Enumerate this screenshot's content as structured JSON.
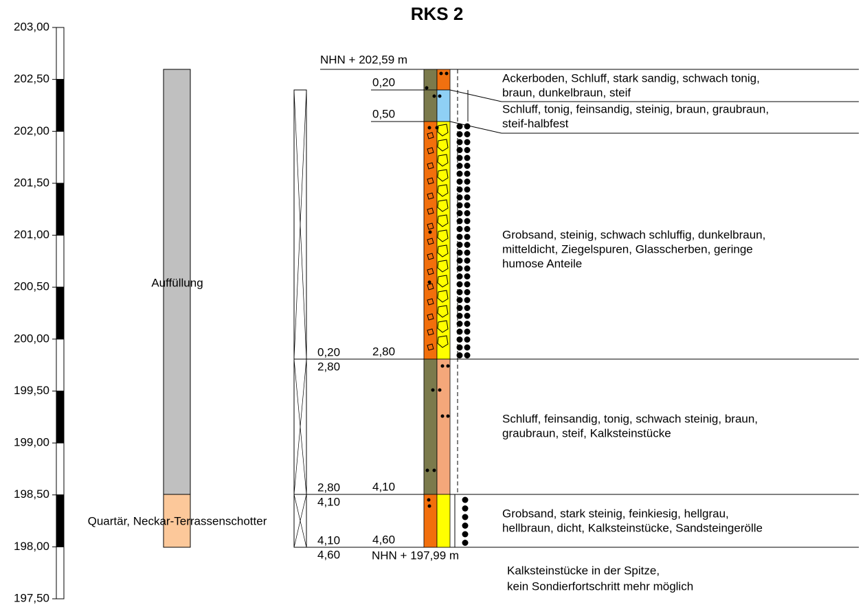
{
  "title": "RKS 2",
  "scale": {
    "labels": [
      "203,00",
      "202,50",
      "202,00",
      "201,50",
      "201,00",
      "200,50",
      "200,00",
      "199,50",
      "199,00",
      "198,50",
      "198,00",
      "197,50"
    ]
  },
  "strata": [
    {
      "label": "Auffüllung"
    },
    {
      "label": "Quartär, Neckar-Terrassenschotter"
    }
  ],
  "pipe": [
    {
      "from": "0,20",
      "to": "2,80"
    },
    {
      "from": "2,80",
      "to": "4,10"
    },
    {
      "from": "4,10",
      "to": "4,60"
    }
  ],
  "top_label": "NHN + 202,59 m",
  "bottom_label": "NHN + 197,99 m",
  "layers": [
    {
      "depth": "0,20",
      "description": [
        "Ackerboden, Schluff, stark sandig, schwach tonig,",
        "braun, dunkelbraun, steif"
      ]
    },
    {
      "depth": "0,50",
      "description": [
        "Schluff, tonig, feinsandig, steinig, braun, graubraun,",
        "steif-halbfest"
      ]
    },
    {
      "depth": "2,80",
      "description": [
        "Grobsand, steinig, schwach schluffig, dunkelbraun,",
        "mitteldicht, Ziegelspuren, Glasscherben, geringe",
        "humose Anteile"
      ]
    },
    {
      "depth": "4,10",
      "description": [
        "Schluff, feinsandig, tonig, schwach steinig, braun,",
        "graubraun, steif, Kalksteinstücke"
      ]
    },
    {
      "depth": "4,60",
      "description": [
        "Grobsand, stark steinig, feinkiesig, hellgrau,",
        "hellbraun, dicht, Kalksteinstücke, Sandsteingerölle"
      ]
    }
  ],
  "note": [
    "Kalksteinstücke in der Spitze,",
    "kein Sondierfortschritt mehr möglich"
  ]
}
